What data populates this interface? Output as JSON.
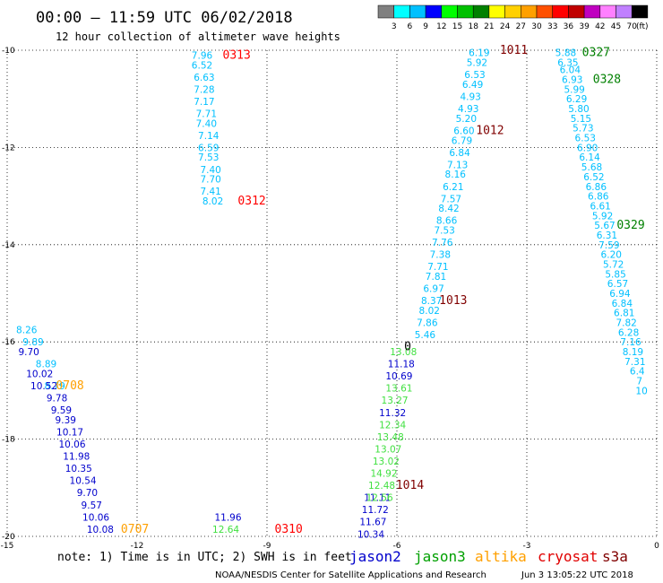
{
  "header": {
    "title": "00:00 – 11:59 UTC 06/02/2018",
    "subtitle": "12 hour collection of altimeter wave heights"
  },
  "colorbar": {
    "labels": [
      "3",
      "6",
      "9",
      "12",
      "15",
      "18",
      "21",
      "24",
      "27",
      "30",
      "33",
      "36",
      "39",
      "42",
      "45",
      "70"
    ],
    "unit": "(ft)",
    "colors": [
      "#808080",
      "#00ffff",
      "#00c0ff",
      "#0000ff",
      "#00ff00",
      "#00c000",
      "#008000",
      "#ffff00",
      "#ffd000",
      "#ffa000",
      "#ff5000",
      "#ff0000",
      "#c00000",
      "#c000c0",
      "#ff80ff",
      "#c080ff",
      "#000000"
    ]
  },
  "footer": {
    "note": "note: 1) Time is in UTC; 2) SWH is in feet",
    "credit": "NOAA/NESDIS Center for Satellite Applications and Research",
    "timestamp": "Jun  3 13:05:22 UTC 2018",
    "satellites": [
      {
        "name": "jason2",
        "color": "#0000cc"
      },
      {
        "name": "jason3",
        "color": "#00a000"
      },
      {
        "name": "altika",
        "color": "#ffa000"
      },
      {
        "name": "cryosat",
        "color": "#e00000"
      },
      {
        "name": "s3a",
        "color": "#800000"
      }
    ]
  },
  "chart_data": {
    "type": "scatter",
    "xlim": [
      -15,
      0
    ],
    "ylim": [
      -20,
      -10
    ],
    "xticks": [
      "-15",
      "-12",
      "-9",
      "-6",
      "-3",
      "0"
    ],
    "yticks": [
      "-10",
      "-12",
      "-14",
      "-16",
      "-18",
      "-20"
    ],
    "grid": true,
    "series": [
      {
        "name": "cryosat",
        "color": "#00c0ff",
        "points": [
          [
            -10.5,
            -10.1,
            "7.96"
          ],
          [
            -10.5,
            -10.3,
            "6.52"
          ],
          [
            -10.45,
            -10.55,
            "6.63"
          ],
          [
            -10.45,
            -10.8,
            "7.28"
          ],
          [
            -10.45,
            -11.05,
            "7.17"
          ],
          [
            -10.4,
            -11.3,
            "7.71"
          ],
          [
            -10.4,
            -11.5,
            "7.40"
          ],
          [
            -10.35,
            -11.75,
            "7.14"
          ],
          [
            -10.35,
            -12.0,
            "6.59"
          ],
          [
            -10.35,
            -12.2,
            "7.53"
          ],
          [
            -10.3,
            -12.45,
            "7.40"
          ],
          [
            -10.3,
            -12.65,
            "7.70"
          ],
          [
            -10.3,
            -12.9,
            "7.41"
          ],
          [
            -10.25,
            -13.1,
            "8.02"
          ]
        ]
      },
      {
        "name": "s3a",
        "color": "#00c0ff",
        "points": [
          [
            -4.1,
            -10.05,
            "6.19"
          ],
          [
            -4.15,
            -10.25,
            "5.92"
          ],
          [
            -4.2,
            -10.5,
            "6.53"
          ],
          [
            -4.25,
            -10.7,
            "6.49"
          ],
          [
            -4.3,
            -10.95,
            "4.93"
          ],
          [
            -4.35,
            -11.2,
            "4.93"
          ],
          [
            -4.4,
            -11.4,
            "5.20"
          ],
          [
            -4.45,
            -11.65,
            "6.60"
          ],
          [
            -4.5,
            -11.85,
            "6.79"
          ],
          [
            -4.55,
            -12.1,
            "6.84"
          ],
          [
            -4.6,
            -12.35,
            "7.13"
          ],
          [
            -4.65,
            -12.55,
            "8.16"
          ],
          [
            -4.7,
            -12.8,
            "6.21"
          ],
          [
            -4.75,
            -13.05,
            "7.57"
          ],
          [
            -4.8,
            -13.25,
            "8.42"
          ],
          [
            -4.85,
            -13.5,
            "8.66"
          ],
          [
            -4.9,
            -13.7,
            "7.53"
          ],
          [
            -4.95,
            -13.95,
            "7.76"
          ],
          [
            -5.0,
            -14.2,
            "7.38"
          ],
          [
            -5.05,
            -14.45,
            "7.71"
          ],
          [
            -5.1,
            -14.65,
            "7.81"
          ],
          [
            -5.15,
            -14.9,
            "6.97"
          ],
          [
            -5.2,
            -15.15,
            "8.37"
          ],
          [
            -5.25,
            -15.35,
            "8.02"
          ],
          [
            -5.3,
            -15.6,
            "7.86"
          ],
          [
            -5.35,
            -15.85,
            "5.46"
          ]
        ]
      },
      {
        "name": "s3a",
        "color": "#00c0ff",
        "points": [
          [
            -2.1,
            -10.05,
            "5.88"
          ],
          [
            -2.05,
            -10.25,
            "6.35"
          ],
          [
            -2.0,
            -10.4,
            "6.04"
          ],
          [
            -1.95,
            -10.6,
            "6.93"
          ],
          [
            -1.9,
            -10.8,
            "5.99"
          ],
          [
            -1.85,
            -11.0,
            "6.29"
          ],
          [
            -1.8,
            -11.2,
            "5.80"
          ],
          [
            -1.75,
            -11.4,
            "5.15"
          ],
          [
            -1.7,
            -11.6,
            "5.73"
          ],
          [
            -1.65,
            -11.8,
            "6.53"
          ],
          [
            -1.6,
            -12.0,
            "6.90"
          ],
          [
            -1.55,
            -12.2,
            "6.14"
          ],
          [
            -1.5,
            -12.4,
            "5.68"
          ],
          [
            -1.45,
            -12.6,
            "6.52"
          ],
          [
            -1.4,
            -12.8,
            "6.86"
          ],
          [
            -1.35,
            -13.0,
            "6.86"
          ],
          [
            -1.3,
            -13.2,
            "6.61"
          ],
          [
            -1.25,
            -13.4,
            "5.92"
          ],
          [
            -1.2,
            -13.6,
            "5.67"
          ],
          [
            -1.15,
            -13.8,
            "6.31"
          ],
          [
            -1.1,
            -14.0,
            "7.59"
          ],
          [
            -1.05,
            -14.2,
            "6.20"
          ],
          [
            -1.0,
            -14.4,
            "5.72"
          ],
          [
            -0.95,
            -14.6,
            "5.85"
          ],
          [
            -0.9,
            -14.8,
            "6.57"
          ],
          [
            -0.85,
            -15.0,
            "6.94"
          ],
          [
            -0.8,
            -15.2,
            "6.84"
          ],
          [
            -0.75,
            -15.4,
            "6.81"
          ],
          [
            -0.7,
            -15.6,
            "7.82"
          ],
          [
            -0.65,
            -15.8,
            "6.28"
          ],
          [
            -0.6,
            -16.0,
            "7.16"
          ],
          [
            -0.55,
            -16.2,
            "8.19"
          ],
          [
            -0.5,
            -16.4,
            "7.31"
          ],
          [
            -0.45,
            -16.6,
            "6.4"
          ],
          [
            -0.4,
            -16.8,
            "7"
          ],
          [
            -0.35,
            -17.0,
            "10"
          ]
        ]
      },
      {
        "name": "jason2",
        "color": "#00c0ff",
        "points": [
          [
            -14.55,
            -15.75,
            "8.26"
          ],
          [
            -14.4,
            -16.0,
            "9.89"
          ],
          [
            -14.1,
            -16.45,
            "8.89"
          ],
          [
            -13.9,
            -16.9,
            "8.79"
          ]
        ]
      },
      {
        "name": "jason2",
        "color": "#0000cc",
        "points": [
          [
            -14.5,
            -16.2,
            "9.70"
          ],
          [
            -14.25,
            -16.65,
            "10.02"
          ],
          [
            -14.15,
            -16.9,
            "10.52"
          ],
          [
            -13.85,
            -17.15,
            "9.78"
          ],
          [
            -13.75,
            -17.4,
            "9.59"
          ],
          [
            -13.65,
            -17.6,
            "9.39"
          ],
          [
            -13.55,
            -17.85,
            "10.17"
          ],
          [
            -13.5,
            -18.1,
            "10.06"
          ],
          [
            -13.4,
            -18.35,
            "11.98"
          ],
          [
            -13.35,
            -18.6,
            "10.35"
          ],
          [
            -13.25,
            -18.85,
            "10.54"
          ],
          [
            -13.15,
            -19.1,
            "9.70"
          ],
          [
            -13.05,
            -19.35,
            "9.57"
          ],
          [
            -12.95,
            -19.6,
            "10.06"
          ],
          [
            -12.85,
            -19.85,
            "10.08"
          ]
        ]
      },
      {
        "name": "jason2",
        "color": "#0000cc",
        "points": [
          [
            -5.9,
            -16.45,
            "11.18"
          ],
          [
            -5.95,
            -16.7,
            "10.69"
          ],
          [
            -6.1,
            -17.45,
            "11.32"
          ],
          [
            -6.45,
            -19.2,
            "11.11"
          ],
          [
            -6.5,
            -19.45,
            "11.72"
          ],
          [
            -6.55,
            -19.7,
            "11.67"
          ],
          [
            -6.6,
            -19.95,
            "10.34"
          ],
          [
            -9.9,
            -19.6,
            "11.96"
          ]
        ]
      },
      {
        "name": "jason3",
        "color": "#40e040",
        "points": [
          [
            -5.85,
            -16.2,
            "13.08"
          ],
          [
            -5.95,
            -16.95,
            "13.61"
          ],
          [
            -6.05,
            -17.2,
            "13.27"
          ],
          [
            -6.1,
            -17.7,
            "12.34"
          ],
          [
            -6.15,
            -17.95,
            "13.48"
          ],
          [
            -6.2,
            -18.2,
            "13.07"
          ],
          [
            -6.25,
            -18.45,
            "13.02"
          ],
          [
            -6.3,
            -18.7,
            "14.92"
          ],
          [
            -6.35,
            -18.95,
            "12.48"
          ],
          [
            -6.4,
            -19.2,
            "12.56"
          ],
          [
            -9.95,
            -19.85,
            "12.64"
          ]
        ]
      }
    ],
    "annotations": [
      {
        "text": "0313",
        "x": -9.7,
        "y": -10.1,
        "color": "#ff0000"
      },
      {
        "text": "0312",
        "x": -9.35,
        "y": -13.1,
        "color": "#ff0000"
      },
      {
        "text": "0310",
        "x": -8.5,
        "y": -19.85,
        "color": "#ff0000"
      },
      {
        "text": "1011",
        "x": -3.3,
        "y": -10.0,
        "color": "#800000"
      },
      {
        "text": "1012",
        "x": -3.85,
        "y": -11.65,
        "color": "#800000"
      },
      {
        "text": "1013",
        "x": -4.7,
        "y": -15.15,
        "color": "#800000"
      },
      {
        "text": "1014",
        "x": -5.7,
        "y": -18.95,
        "color": "#800000"
      },
      {
        "text": "0327",
        "x": -1.4,
        "y": -10.05,
        "color": "#008000"
      },
      {
        "text": "0328",
        "x": -1.15,
        "y": -10.6,
        "color": "#008000"
      },
      {
        "text": "0329",
        "x": -0.6,
        "y": -13.6,
        "color": "#008000"
      },
      {
        "text": "0708",
        "x": -13.55,
        "y": -16.9,
        "color": "#ffa000"
      },
      {
        "text": "0707",
        "x": -12.05,
        "y": -19.85,
        "color": "#ffa000"
      },
      {
        "text": "0",
        "x": -5.75,
        "y": -16.1,
        "color": "#000000"
      }
    ]
  }
}
